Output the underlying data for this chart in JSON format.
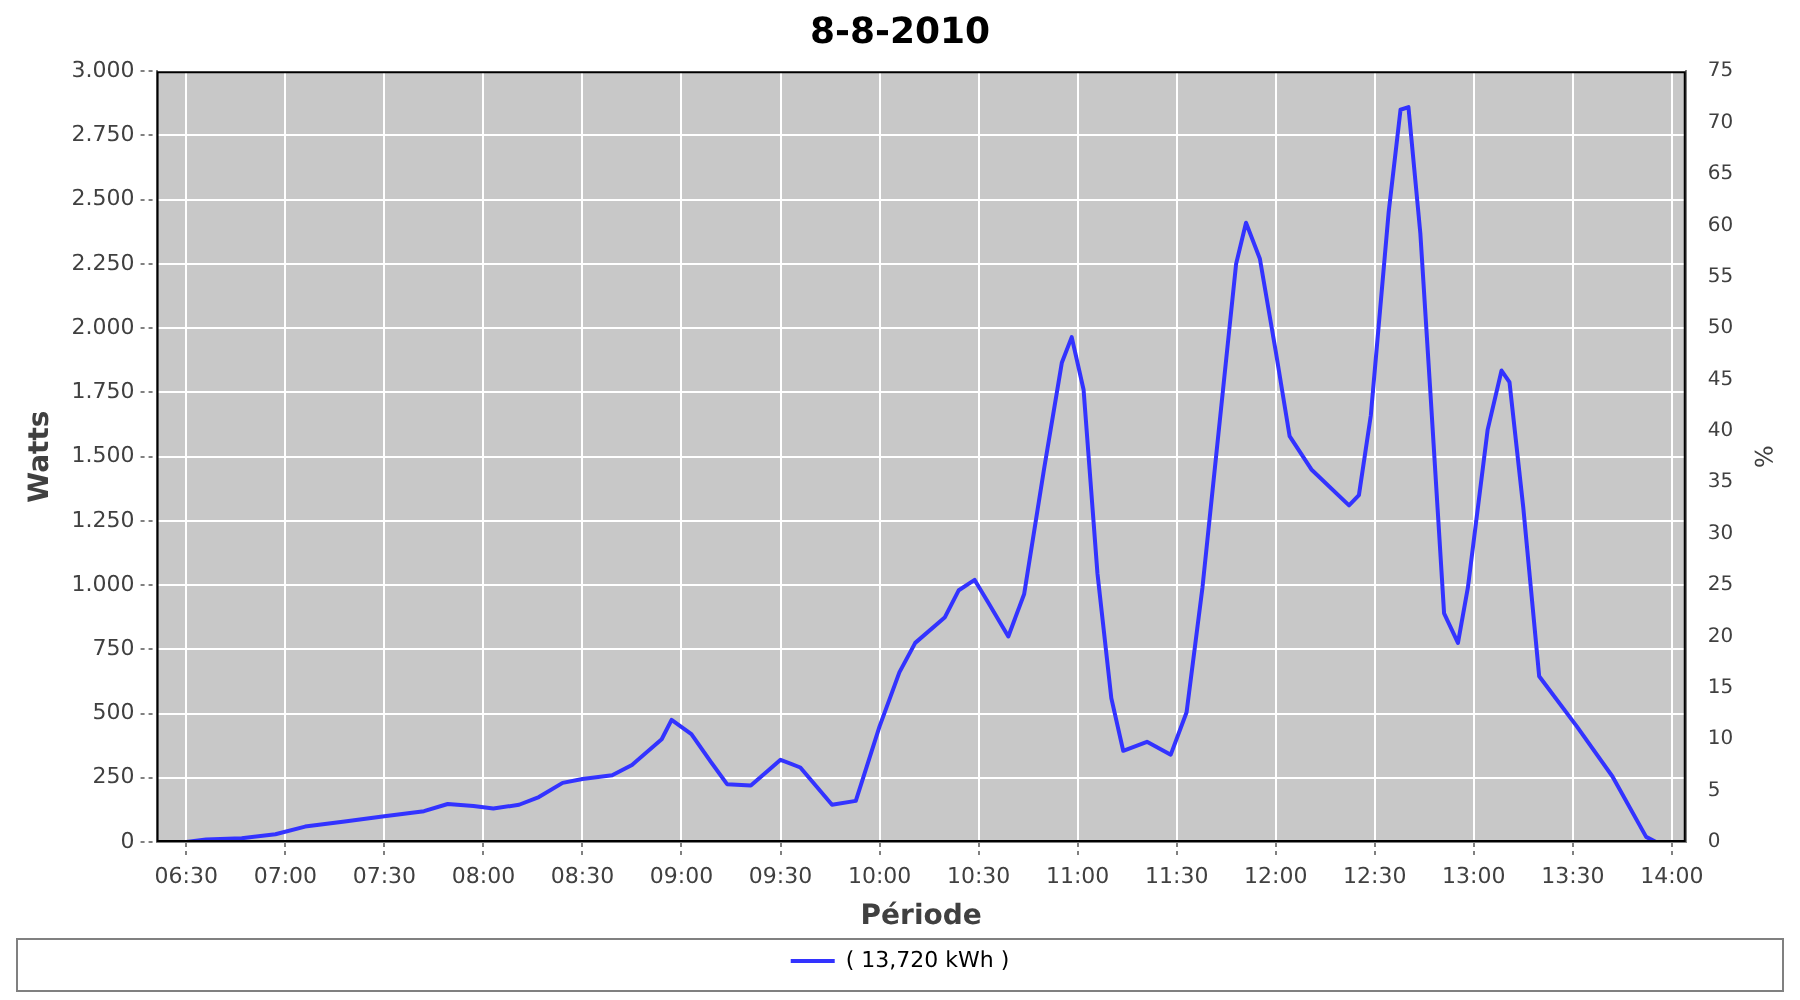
{
  "chart_data": {
    "type": "line",
    "title": "8-8-2010",
    "xlabel": "Période",
    "ylabel": "Watts",
    "y2label": "%",
    "xlim": [
      6.35,
      14.07
    ],
    "xticks": [
      {
        "value": 6.5,
        "label": "06:30"
      },
      {
        "value": 7,
        "label": "07:00"
      },
      {
        "value": 7.5,
        "label": "07:30"
      },
      {
        "value": 8,
        "label": "08:00"
      },
      {
        "value": 8.5,
        "label": "08:30"
      },
      {
        "value": 9,
        "label": "09:00"
      },
      {
        "value": 9.5,
        "label": "09:30"
      },
      {
        "value": 10,
        "label": "10:00"
      },
      {
        "value": 10.5,
        "label": "10:30"
      },
      {
        "value": 11,
        "label": "11:00"
      },
      {
        "value": 11.5,
        "label": "11:30"
      },
      {
        "value": 12,
        "label": "12:00"
      },
      {
        "value": 12.5,
        "label": "12:30"
      },
      {
        "value": 13,
        "label": "13:00"
      },
      {
        "value": 13.5,
        "label": "13:30"
      },
      {
        "value": 14,
        "label": "14:00"
      }
    ],
    "ylim": [
      0,
      3000
    ],
    "yticks": [
      0,
      250,
      500,
      750,
      {
        "value": 1000,
        "label": "1.000"
      },
      {
        "value": 1250,
        "label": "1.250"
      },
      {
        "value": 1500,
        "label": "1.500"
      },
      {
        "value": 1750,
        "label": "1.750"
      },
      {
        "value": 2000,
        "label": "2.000"
      },
      {
        "value": 2250,
        "label": "2.250"
      },
      {
        "value": 2500,
        "label": "2.500"
      },
      {
        "value": 2750,
        "label": "2.750"
      },
      {
        "value": 3000,
        "label": "3.000"
      }
    ],
    "y2lim": [
      0,
      75
    ],
    "y2ticks": [
      0,
      5,
      10,
      15,
      20,
      25,
      30,
      35,
      40,
      45,
      50,
      55,
      60,
      65,
      70,
      75
    ],
    "grid": true,
    "legend": "bottom",
    "marker": "none",
    "line_style": "solid",
    "series": [
      {
        "name": "( 13,720 kWh )",
        "color": "#3333ff",
        "x": [
          6.5,
          6.6,
          6.78,
          6.95,
          7.1,
          7.3,
          7.5,
          7.7,
          7.82,
          7.95,
          8.05,
          8.18,
          8.28,
          8.4,
          8.5,
          8.65,
          8.75,
          8.9,
          8.95,
          9.05,
          9.15,
          9.23,
          9.35,
          9.5,
          9.6,
          9.76,
          9.88,
          10.0,
          10.1,
          10.18,
          10.33,
          10.4,
          10.48,
          10.55,
          10.65,
          10.73,
          10.83,
          10.92,
          10.97,
          11.03,
          11.1,
          11.17,
          11.23,
          11.35,
          11.47,
          11.55,
          11.63,
          11.8,
          11.85,
          11.92,
          12.0,
          12.07,
          12.18,
          12.37,
          12.42,
          12.48,
          12.57,
          12.63,
          12.67,
          12.73,
          12.78,
          12.85,
          12.92,
          12.97,
          13.07,
          13.14,
          13.18,
          13.25,
          13.33,
          13.52,
          13.7,
          13.87,
          13.92
        ],
        "values": [
          0,
          10,
          15,
          30,
          60,
          80,
          100,
          120,
          148,
          140,
          130,
          145,
          175,
          230,
          245,
          260,
          300,
          400,
          475,
          420,
          310,
          225,
          220,
          320,
          290,
          145,
          160,
          450,
          660,
          775,
          875,
          980,
          1020,
          930,
          800,
          965,
          1450,
          1865,
          1965,
          1760,
          1045,
          560,
          355,
          390,
          340,
          505,
          990,
          2250,
          2410,
          2270,
          1910,
          1580,
          1450,
          1310,
          1350,
          1660,
          2450,
          2850,
          2860,
          2370,
          1760,
          890,
          775,
          990,
          1605,
          1835,
          1790,
          1300,
          645,
          450,
          255,
          20,
          0
        ]
      }
    ]
  }
}
